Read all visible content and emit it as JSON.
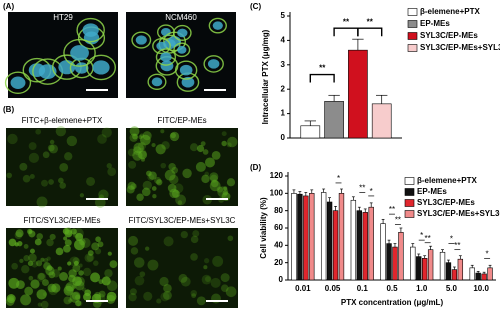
{
  "panels": {
    "a_label": "(A)",
    "a_images": [
      "HT29",
      "NCM460"
    ],
    "b_label": "(B)",
    "b_images": [
      "FITC+β-elemene+PTX",
      "FITC/EP-MEs",
      "FITC/SYL3C/EP-MEs",
      "FITC/SYL3C/EP-MEs+SYL3C"
    ]
  },
  "chart_data": [
    {
      "type": "bar",
      "title": "(C)",
      "y_label": "Intracellular PTX (μg/mg)",
      "categories": [
        null
      ],
      "series": [
        {
          "name": "β-elemene+PTX",
          "color": "#ffffff",
          "values": [
            0.5
          ],
          "errors": [
            0.2
          ]
        },
        {
          "name": "EP-MEs",
          "color": "#8c8c8c",
          "values": [
            1.5
          ],
          "errors": [
            0.25
          ]
        },
        {
          "name": "SYL3C/EP-MEs",
          "color": "#d0101e",
          "values": [
            3.6
          ],
          "errors": [
            0.45
          ]
        },
        {
          "name": "SYL3C/EP-MEs+SYL3C",
          "color": "#f7cccc",
          "values": [
            1.4
          ],
          "errors": [
            0.35
          ]
        }
      ],
      "ylim": [
        0,
        5
      ],
      "yticks": [
        0,
        1,
        2,
        3,
        4,
        5
      ],
      "annotations": [
        "**",
        "**",
        "**"
      ]
    },
    {
      "type": "bar",
      "title": "(D)",
      "y_label": "Cell viability (%)",
      "x_label": "PTX concentration (μg/mL)",
      "categories": [
        "0.01",
        "0.05",
        "0.1",
        "0.5",
        "1.0",
        "5.0",
        "10.0"
      ],
      "series": [
        {
          "name": "β-elemene+PTX",
          "color": "#ffffff",
          "values": [
            100,
            101,
            92,
            65,
            38,
            32,
            14
          ],
          "errors": [
            4,
            4,
            4,
            5,
            4,
            3,
            3
          ]
        },
        {
          "name": "EP-MEs",
          "color": "#111111",
          "values": [
            99,
            90,
            80,
            42,
            27,
            20,
            8
          ],
          "errors": [
            3,
            5,
            4,
            4,
            3,
            3,
            2
          ]
        },
        {
          "name": "SYL3C/EP-MEs",
          "color": "#e0262d",
          "values": [
            97,
            80,
            78,
            38,
            25,
            12,
            7
          ],
          "errors": [
            4,
            5,
            4,
            4,
            3,
            3,
            2
          ]
        },
        {
          "name": "SYL3C/EP-MEs+SYL3C",
          "color": "#f08a8a",
          "values": [
            100,
            100,
            84,
            55,
            35,
            24,
            14
          ],
          "errors": [
            4,
            5,
            5,
            5,
            4,
            4,
            3
          ]
        }
      ],
      "ylim": [
        0,
        120
      ],
      "yticks": [
        0,
        20,
        40,
        60,
        80,
        100,
        120
      ],
      "annotations": [
        "*",
        "**",
        "*",
        "**",
        "**",
        "*",
        "**",
        "*",
        "**",
        "*"
      ]
    }
  ]
}
